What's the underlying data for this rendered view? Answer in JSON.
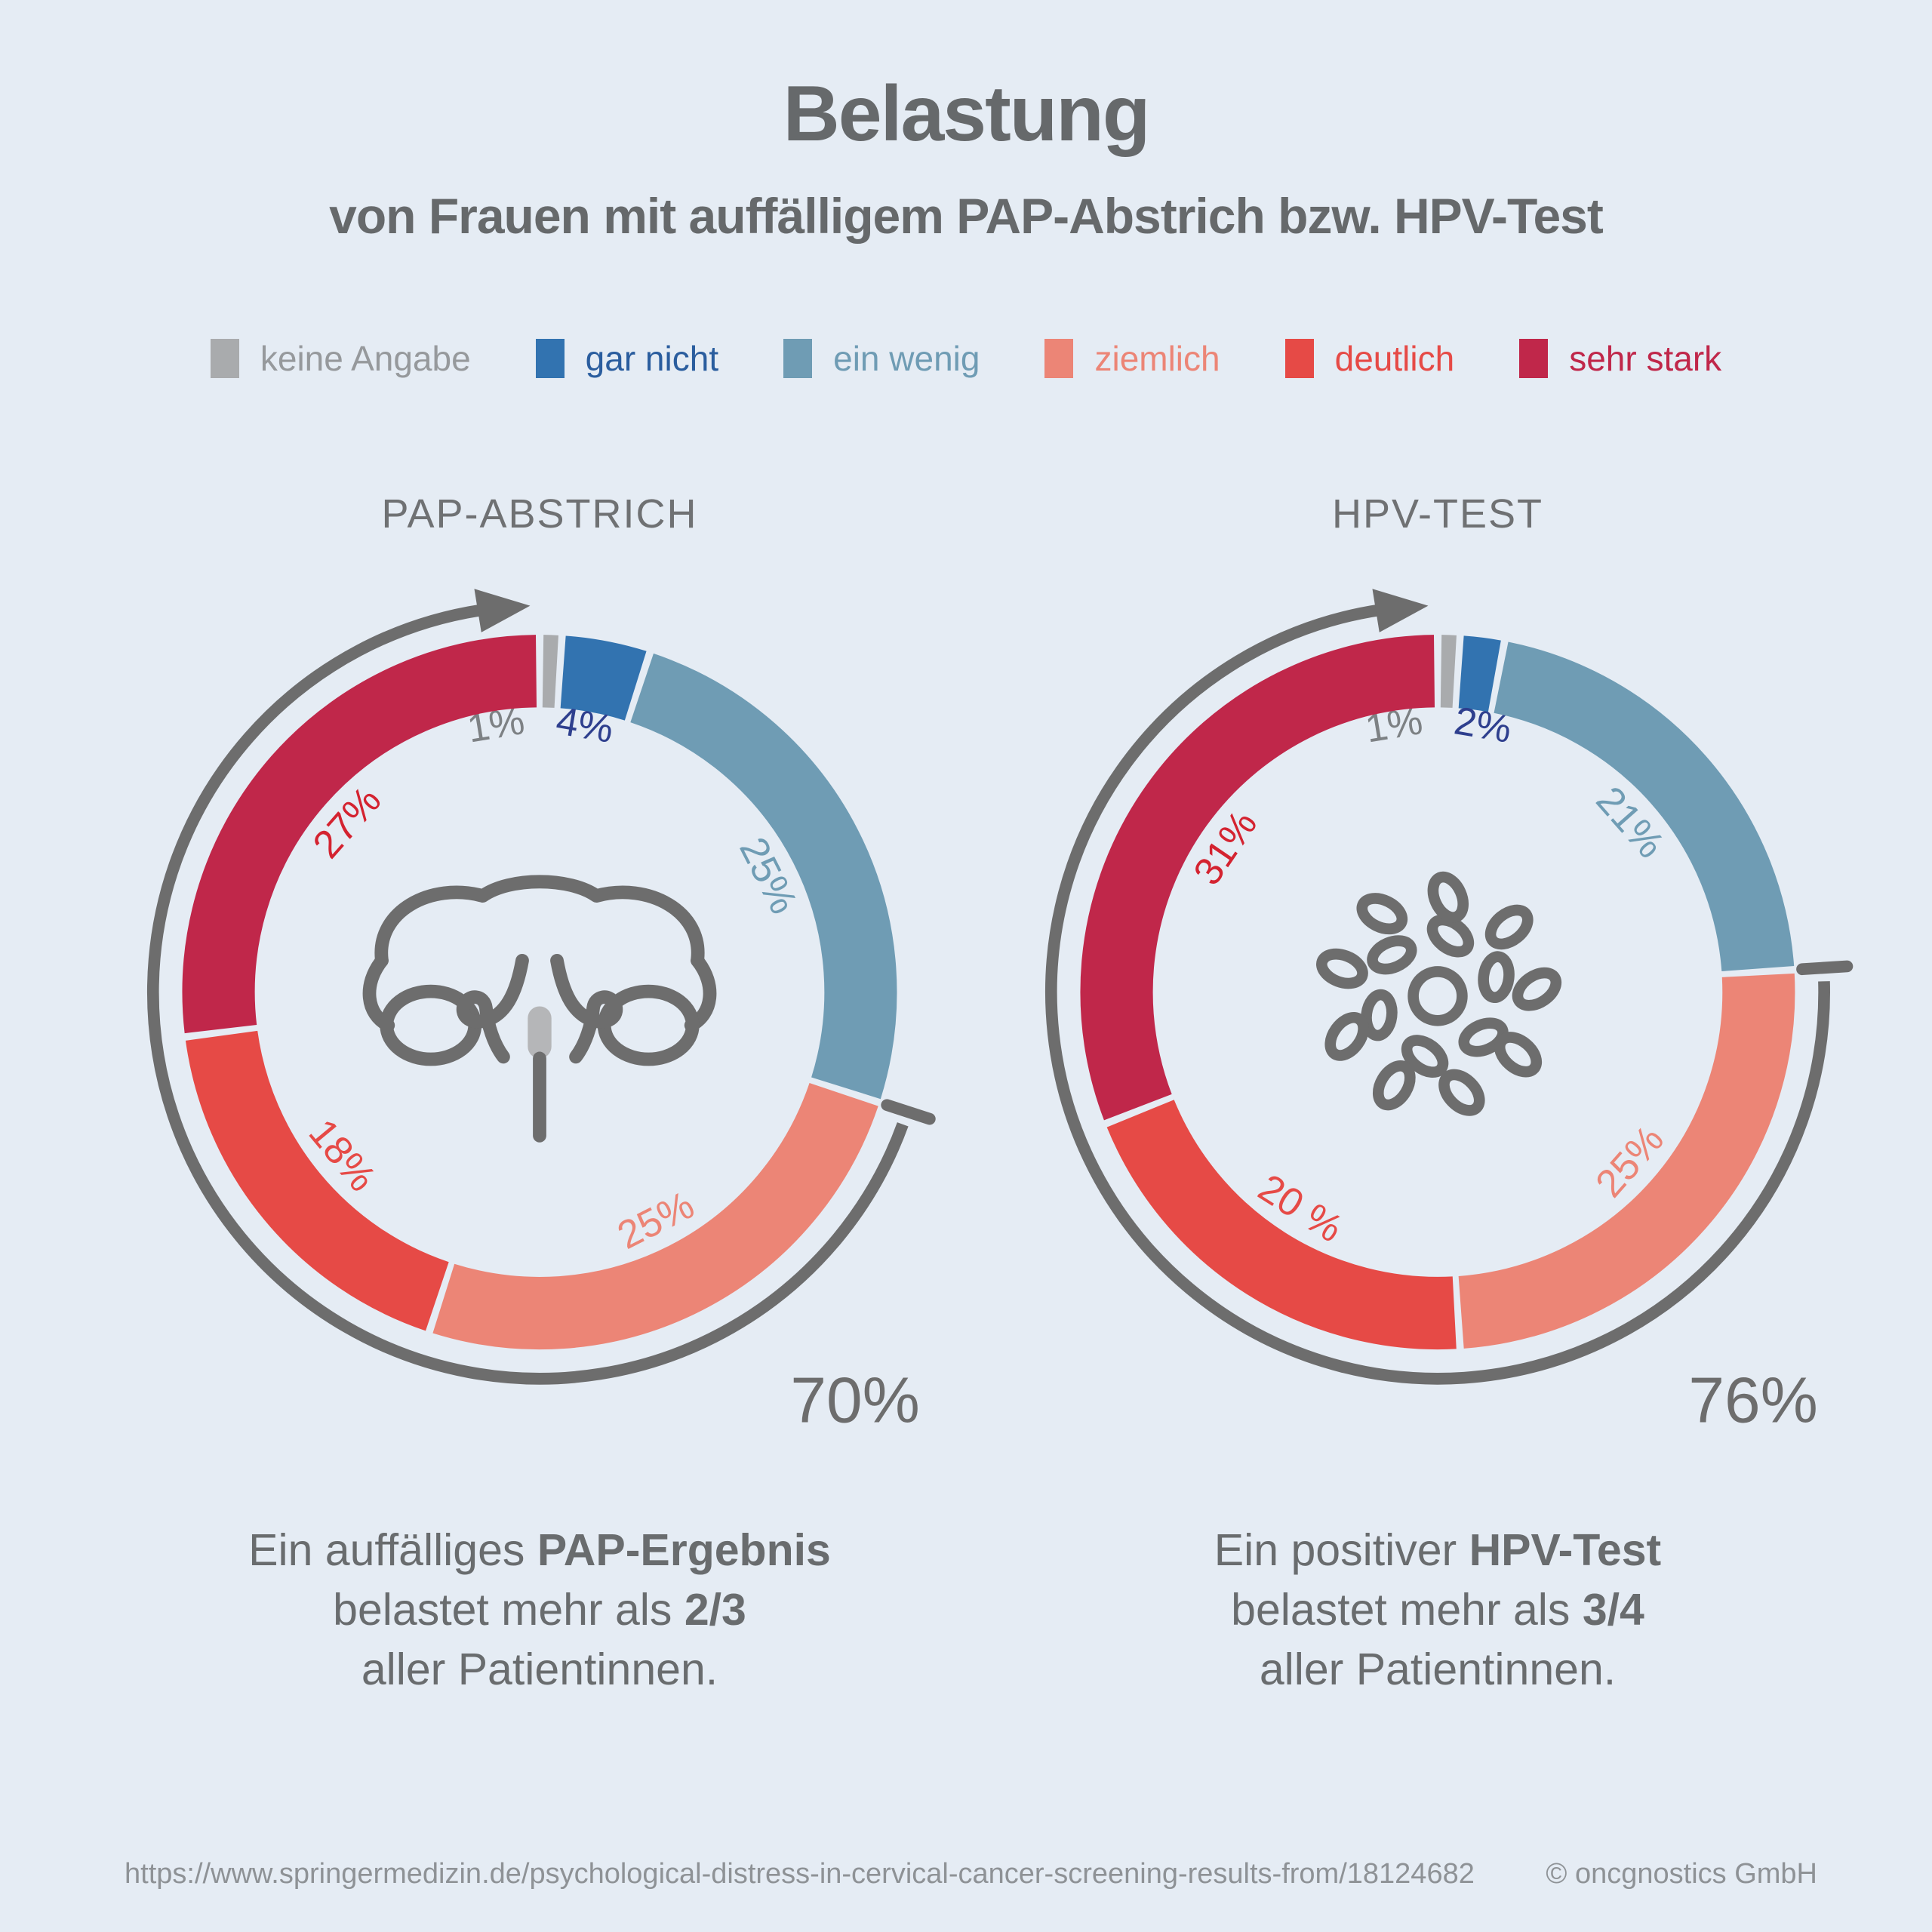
{
  "title": "Belastung",
  "subtitle": "von Frauen mit auffälligem PAP-Abstrich bzw. HPV-Test",
  "legend": [
    {
      "label": "keine Angabe",
      "color": "#a9abad",
      "text_color": "#96999c"
    },
    {
      "label": "gar nicht",
      "color": "#3273b0",
      "text_color": "#2a5d9e"
    },
    {
      "label": "ein wenig",
      "color": "#6f9cb4",
      "text_color": "#6f9cb4"
    },
    {
      "label": "ziemlich",
      "color": "#ec8576",
      "text_color": "#ec8576"
    },
    {
      "label": "deutlich",
      "color": "#e64a46",
      "text_color": "#e64a46"
    },
    {
      "label": "sehr stark",
      "color": "#c0274a",
      "text_color": "#c0274a"
    }
  ],
  "charts": [
    {
      "title": "PAP-ABSTRICH",
      "icon": "uterus-icon",
      "segments": [
        {
          "label": "keine Angabe",
          "value": 1,
          "display": "1%",
          "color": "#a9abad",
          "label_color": "#7d8184"
        },
        {
          "label": "gar nicht",
          "value": 4,
          "display": "4%",
          "color": "#3273b0",
          "label_color": "#2e3f8e"
        },
        {
          "label": "ein wenig",
          "value": 25,
          "display": "25%",
          "color": "#6f9cb4",
          "label_color": "#6f9cb4"
        },
        {
          "label": "ziemlich",
          "value": 25,
          "display": "25%",
          "color": "#ec8576",
          "label_color": "#ec8576"
        },
        {
          "label": "deutlich",
          "value": 18,
          "display": "18%",
          "color": "#e64a46",
          "label_color": "#e64a46"
        },
        {
          "label": "sehr stark",
          "value": 27,
          "display": "27%",
          "color": "#c0274a",
          "label_color": "#d42330"
        }
      ],
      "highlight_total": "70%",
      "caption_lines": [
        [
          {
            "t": "Ein auffälliges "
          },
          {
            "t": "PAP-Ergebnis",
            "b": true
          }
        ],
        [
          {
            "t": "belastet mehr als "
          },
          {
            "t": "2/3",
            "b": true
          }
        ],
        [
          {
            "t": "aller Patientinnen."
          }
        ]
      ]
    },
    {
      "title": "HPV-TEST",
      "icon": "virus-icon",
      "segments": [
        {
          "label": "keine Angabe",
          "value": 1,
          "display": "1%",
          "color": "#a9abad",
          "label_color": "#7d8184"
        },
        {
          "label": "gar nicht",
          "value": 2,
          "display": "2%",
          "color": "#3273b0",
          "label_color": "#2e3f8e"
        },
        {
          "label": "ein wenig",
          "value": 21,
          "display": "21%",
          "color": "#6f9cb4",
          "label_color": "#6f9cb4"
        },
        {
          "label": "ziemlich",
          "value": 25,
          "display": "25%",
          "color": "#ec8576",
          "label_color": "#ec8576"
        },
        {
          "label": "deutlich",
          "value": 20,
          "display": "20 %",
          "color": "#e64a46",
          "label_color": "#e64a46"
        },
        {
          "label": "sehr stark",
          "value": 31,
          "display": "31%",
          "color": "#c0274a",
          "label_color": "#d42330"
        }
      ],
      "highlight_total": "76%",
      "caption_lines": [
        [
          {
            "t": "Ein positiver "
          },
          {
            "t": "HPV-Test",
            "b": true
          }
        ],
        [
          {
            "t": "belastet mehr als "
          },
          {
            "t": "3/4",
            "b": true
          }
        ],
        [
          {
            "t": "aller Patientinnen."
          }
        ]
      ]
    }
  ],
  "footer": {
    "source_url": "https://www.springermedizin.de/psychological-distress-in-cervical-cancer-screening-results-from/18124682",
    "copyright": "© oncgnostics GmbH"
  },
  "chart_data": {
    "type": "pie",
    "title": "Belastung von Frauen mit auffälligem PAP-Abstrich bzw. HPV-Test",
    "legend_position": "top",
    "legend_entries": [
      "keine Angabe",
      "gar nicht",
      "ein wenig",
      "ziemlich",
      "deutlich",
      "sehr stark"
    ],
    "charts": [
      {
        "title": "PAP-ABSTRICH",
        "categories": [
          "keine Angabe",
          "gar nicht",
          "ein wenig",
          "ziemlich",
          "deutlich",
          "sehr stark"
        ],
        "values": [
          1,
          4,
          25,
          25,
          18,
          27
        ],
        "unit": "%",
        "highlight": {
          "label": "70%",
          "covers": [
            "ziemlich",
            "deutlich",
            "sehr stark"
          ]
        },
        "annotation": "Ein auffälliges PAP-Ergebnis belastet mehr als 2/3 aller Patientinnen."
      },
      {
        "title": "HPV-TEST",
        "categories": [
          "keine Angabe",
          "gar nicht",
          "ein wenig",
          "ziemlich",
          "deutlich",
          "sehr stark"
        ],
        "values": [
          1,
          2,
          21,
          25,
          20,
          31
        ],
        "unit": "%",
        "highlight": {
          "label": "76%",
          "covers": [
            "ziemlich",
            "deutlich",
            "sehr stark"
          ]
        },
        "annotation": "Ein positiver HPV-Test belastet mehr als 3/4 aller Patientinnen."
      }
    ]
  }
}
